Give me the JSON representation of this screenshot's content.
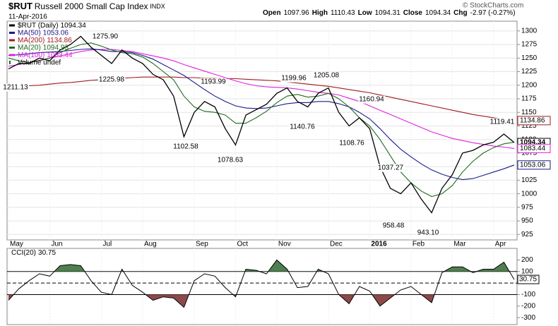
{
  "header": {
    "symbol": "$RUT",
    "name": "Russell 2000 Small Cap Index",
    "exchange": "INDX",
    "date": "11-Apr-2016",
    "quote": [
      "Open",
      "1097.96",
      "High",
      "1110.43",
      "Low",
      "1094.31",
      "Close",
      "1094.34",
      "Chg",
      "-2.97 (-0.27%)"
    ],
    "copyright": "© StockCharts.com",
    "volume_legend": "Volume undef"
  },
  "chart_data": [
    {
      "type": "line",
      "categories": [
        "May",
        null,
        null,
        null,
        "Jun",
        null,
        null,
        null,
        null,
        "Jul",
        null,
        null,
        null,
        "Aug",
        null,
        null,
        null,
        null,
        "Sep",
        null,
        null,
        null,
        "Oct",
        null,
        null,
        null,
        "Nov",
        null,
        null,
        null,
        null,
        "Dec",
        null,
        null,
        null,
        "2016",
        null,
        null,
        null,
        "Feb",
        null,
        null,
        null,
        "Mar",
        null,
        null,
        null,
        "Apr",
        null,
        null
      ],
      "series": [
        {
          "name": "$RUT (Daily)",
          "color": "#000000",
          "values": [
            1230,
            1240,
            1240,
            1250,
            1245,
            1265,
            1275,
            1290,
            1270,
            1255,
            1240,
            1265,
            1250,
            1240,
            1220,
            1210,
            1180,
            1105,
            1150,
            1170,
            1160,
            1120,
            1090,
            1145,
            1155,
            1165,
            1185,
            1195,
            1170,
            1160,
            1185,
            1195,
            1150,
            1125,
            1140,
            1120,
            1050,
            1010,
            1000,
            1020,
            990,
            965,
            1010,
            1035,
            1075,
            1080,
            1090,
            1095,
            1110,
            1094.34
          ]
        },
        {
          "name": "MA(50)",
          "color": "#1a1a8c",
          "values": [
            1255,
            1256,
            1258,
            1260,
            1261,
            1262,
            1264,
            1266,
            1267,
            1265,
            1262,
            1262,
            1260,
            1255,
            1248,
            1238,
            1228,
            1218,
            1205,
            1192,
            1180,
            1170,
            1162,
            1158,
            1157,
            1158,
            1162,
            1166,
            1168,
            1168,
            1170,
            1170,
            1166,
            1160,
            1150,
            1138,
            1120,
            1100,
            1082,
            1068,
            1055,
            1044,
            1036,
            1030,
            1026,
            1028,
            1034,
            1040,
            1046,
            1053.06
          ]
        },
        {
          "name": "MA(200)",
          "color": "#a01b1b",
          "values": [
            1195,
            1197,
            1199,
            1200,
            1202,
            1204,
            1205,
            1207,
            1209,
            1210,
            1212,
            1213,
            1214,
            1215,
            1215,
            1215,
            1215,
            1214,
            1214,
            1213,
            1213,
            1212,
            1212,
            1211,
            1210,
            1209,
            1208,
            1206,
            1204,
            1202,
            1200,
            1198,
            1195,
            1192,
            1189,
            1186,
            1182,
            1178,
            1174,
            1170,
            1166,
            1162,
            1158,
            1154,
            1150,
            1146,
            1143,
            1140,
            1137,
            1134.86
          ]
        },
        {
          "name": "MA(20)",
          "color": "#1f6b1f",
          "values": [
            1250,
            1245,
            1242,
            1245,
            1250,
            1260,
            1268,
            1275,
            1278,
            1272,
            1265,
            1260,
            1258,
            1252,
            1240,
            1225,
            1210,
            1180,
            1160,
            1152,
            1150,
            1145,
            1130,
            1130,
            1140,
            1152,
            1168,
            1180,
            1183,
            1178,
            1180,
            1185,
            1175,
            1160,
            1140,
            1125,
            1100,
            1070,
            1040,
            1020,
            1005,
            995,
            1000,
            1015,
            1040,
            1060,
            1075,
            1085,
            1092,
            1094.93
          ]
        },
        {
          "name": "MA(100)",
          "color": "#e020e0",
          "values": [
            1235,
            1238,
            1242,
            1246,
            1250,
            1254,
            1258,
            1262,
            1265,
            1266,
            1266,
            1264,
            1262,
            1258,
            1254,
            1250,
            1245,
            1238,
            1232,
            1226,
            1220,
            1214,
            1208,
            1203,
            1199,
            1197,
            1196,
            1195,
            1193,
            1190,
            1187,
            1185,
            1182,
            1176,
            1170,
            1162,
            1154,
            1146,
            1138,
            1130,
            1122,
            1114,
            1108,
            1102,
            1098,
            1094,
            1091,
            1088,
            1086,
            1083.44
          ]
        }
      ],
      "ylim": [
        915,
        1318
      ],
      "yticks": [
        925,
        950,
        975,
        1000,
        1025,
        1050,
        1075,
        1100,
        1125,
        1150,
        1175,
        1200,
        1225,
        1250,
        1275,
        1300
      ],
      "grid": true,
      "annotations": [
        "1211.13",
        "1275.90",
        "1225.98",
        "1193.99",
        "1102.58",
        "1078.63",
        "1199.96",
        "1205.08",
        "1140.76",
        "1160.94",
        "1108.76",
        "1037.27",
        "958.48",
        "943.10",
        "1119.41"
      ]
    },
    {
      "type": "line",
      "series": [
        {
          "name": "CCI(20)",
          "color": "#000000",
          "values": [
            -150,
            -50,
            20,
            80,
            60,
            150,
            160,
            150,
            20,
            -80,
            -100,
            120,
            -20,
            -80,
            -150,
            -120,
            -130,
            -210,
            20,
            80,
            60,
            -40,
            -120,
            120,
            110,
            80,
            200,
            120,
            -40,
            -30,
            120,
            80,
            -100,
            -180,
            -30,
            -70,
            -200,
            -130,
            -60,
            -30,
            -100,
            -170,
            90,
            140,
            140,
            90,
            120,
            120,
            180,
            30.75
          ]
        }
      ],
      "ylim": [
        -360,
        300
      ],
      "yticks": [
        -300,
        -200,
        -100,
        100,
        200
      ],
      "fill_above": {
        "level": 100,
        "color": "#4f7f4f"
      },
      "fill_below": {
        "level": -100,
        "color": "#8a4a4a"
      }
    }
  ]
}
